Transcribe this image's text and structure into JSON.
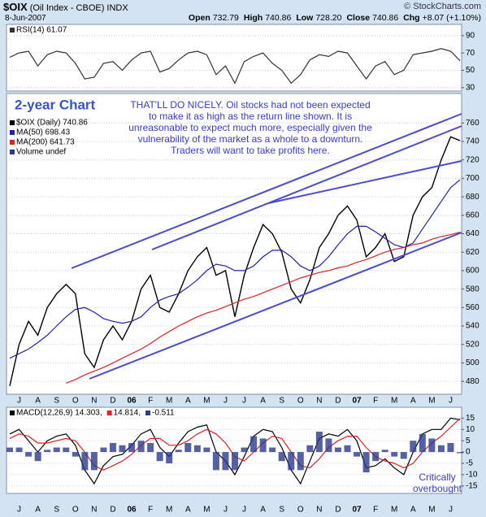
{
  "header": {
    "symbol": "$OIX",
    "description": "(Oil Index - CBOE) INDX",
    "copyright": "© StockCharts.com",
    "date": "8-Jun-2007",
    "quote": [
      {
        "label": "Open",
        "value": "732.79"
      },
      {
        "label": "High",
        "value": "740.86"
      },
      {
        "label": "Low",
        "value": "728.20"
      },
      {
        "label": "Close",
        "value": "740.86"
      },
      {
        "label": "Chg",
        "value": "+8.07 (+1.10%)"
      }
    ]
  },
  "chart_data": [
    {
      "type": "line",
      "legend": "top-left",
      "legend_layout": "column",
      "series": [
        {
          "name": "RSI(14) 61.07",
          "color": "#333333",
          "values": [
            65,
            70,
            72,
            55,
            68,
            72,
            70,
            58,
            40,
            42,
            58,
            60,
            50,
            62,
            70,
            72,
            48,
            52,
            62,
            70,
            72,
            68,
            45,
            55,
            35,
            60,
            66,
            70,
            58,
            50,
            35,
            45,
            62,
            68,
            66,
            72,
            70,
            55,
            40,
            55,
            60,
            45,
            50,
            68,
            70,
            72,
            75,
            72,
            61.07
          ]
        }
      ],
      "ylim": [
        26,
        103
      ],
      "yticks": [
        30,
        50,
        70,
        90
      ],
      "grid": true
    },
    {
      "type": "line",
      "title": "2-year Chart",
      "annotation": "THAT'LL DO NICELY. Oil stocks had not been expected to make it as high as the return line shown. It is unreasonable to expect much more, especially given the vulnerability of the market as a whole to a downturn. Traders will want to take profits here.",
      "legend": "top-left",
      "legend_layout": "column",
      "legend_extra": "Volume undef",
      "categories": [
        null,
        "J",
        null,
        "A",
        null,
        "S",
        null,
        "O",
        null,
        "N",
        null,
        "D",
        null,
        "06",
        null,
        "F",
        null,
        "M",
        null,
        "A",
        null,
        "M",
        null,
        "J",
        null,
        "J",
        null,
        "A",
        null,
        "S",
        null,
        "O",
        null,
        "N",
        null,
        "D",
        null,
        "07",
        null,
        "F",
        null,
        "M",
        null,
        "A",
        null,
        "M",
        null,
        "J",
        null
      ],
      "series": [
        {
          "name": "$OIX (Daily) 740.86",
          "color": "#000000",
          "values": [
            475,
            520,
            545,
            530,
            560,
            575,
            585,
            575,
            510,
            495,
            525,
            540,
            525,
            545,
            580,
            595,
            560,
            555,
            575,
            600,
            615,
            625,
            595,
            600,
            550,
            595,
            625,
            650,
            640,
            620,
            580,
            565,
            590,
            625,
            640,
            660,
            670,
            655,
            615,
            625,
            640,
            610,
            615,
            660,
            680,
            690,
            720,
            745,
            740.86
          ]
        },
        {
          "name": "MA(50) 698.43",
          "color": "#2222aa",
          "values": [
            505,
            510,
            515,
            522,
            530,
            540,
            550,
            558,
            560,
            555,
            548,
            545,
            543,
            545,
            550,
            560,
            568,
            572,
            575,
            582,
            590,
            600,
            607,
            605,
            600,
            600,
            605,
            615,
            622,
            622,
            615,
            605,
            600,
            605,
            615,
            628,
            640,
            648,
            648,
            642,
            635,
            628,
            625,
            630,
            645,
            660,
            675,
            690,
            698.43
          ]
        },
        {
          "name": "MA(200) 641.73",
          "color": "#dd2222",
          "values": [
            null,
            null,
            null,
            null,
            null,
            null,
            478,
            482,
            487,
            491,
            495,
            500,
            505,
            510,
            515,
            521,
            528,
            534,
            540,
            545,
            550,
            554,
            557,
            561,
            565,
            569,
            572,
            576,
            580,
            584,
            588,
            592,
            595,
            598,
            600,
            603,
            605,
            609,
            612,
            616,
            620,
            623,
            625,
            628,
            630,
            634,
            637,
            639,
            641.73
          ]
        }
      ],
      "ylim": [
        466,
        792
      ],
      "yticks": [
        480,
        500,
        520,
        540,
        560,
        580,
        600,
        620,
        640,
        660,
        680,
        700,
        720,
        740,
        760
      ],
      "grid": true
    },
    {
      "type": "line",
      "annotation": "Critically overbought",
      "legend": "top-left",
      "legend_layout": "row",
      "categories": [
        null,
        "J",
        null,
        "A",
        null,
        "S",
        null,
        "O",
        null,
        "N",
        null,
        "D",
        null,
        "06",
        null,
        "F",
        null,
        "M",
        null,
        "A",
        null,
        "M",
        null,
        "J",
        null,
        "J",
        null,
        "A",
        null,
        "S",
        null,
        "O",
        null,
        "N",
        null,
        "D",
        null,
        "07",
        null,
        "F",
        null,
        "M",
        null,
        "A",
        null,
        "M",
        null,
        "J",
        null
      ],
      "series": [
        {
          "name": "MACD(12,26,9) 14.303,",
          "color": "#000000",
          "values": [
            8,
            10,
            5,
            0,
            5,
            7,
            8,
            3,
            -8,
            -14,
            -6,
            -2,
            -1,
            3,
            8,
            10,
            2,
            -2,
            4,
            9,
            11,
            12,
            0,
            -4,
            -10,
            -2,
            7,
            10,
            9,
            2,
            -8,
            -14,
            -4,
            6,
            8,
            7,
            10,
            5,
            -7,
            -6,
            -3,
            -7,
            -10,
            0,
            8,
            10,
            10,
            15,
            14.303
          ]
        },
        {
          "name": "14.814,",
          "color": "#dd2222",
          "values": [
            6,
            8,
            7,
            4,
            4,
            5,
            6,
            5,
            0,
            -6,
            -8,
            -6,
            -4,
            -1,
            3,
            6,
            6,
            3,
            3,
            5,
            8,
            10,
            8,
            4,
            -2,
            -4,
            0,
            4,
            7,
            6,
            0,
            -6,
            -7,
            -3,
            2,
            5,
            7,
            7,
            2,
            -2,
            -4,
            -5,
            -7,
            -5,
            0,
            4,
            7,
            11,
            14.814
          ]
        },
        {
          "name": "-0.511",
          "color": "#2a3a8c",
          "style": "histogram",
          "values": [
            2,
            2,
            -2,
            -4,
            1,
            2,
            2,
            -2,
            -8,
            -8,
            2,
            4,
            3,
            4,
            5,
            4,
            -4,
            -5,
            1,
            4,
            3,
            2,
            -8,
            -8,
            -8,
            2,
            7,
            6,
            2,
            -4,
            -8,
            -8,
            3,
            9,
            6,
            2,
            3,
            -2,
            -9,
            -4,
            1,
            -2,
            -3,
            5,
            8,
            6,
            3,
            4,
            -0.511
          ]
        }
      ],
      "ylim": [
        -18.3,
        19.8
      ],
      "yticks": [
        -15,
        -10,
        -5,
        0,
        5,
        10,
        15
      ],
      "grid": true
    }
  ]
}
